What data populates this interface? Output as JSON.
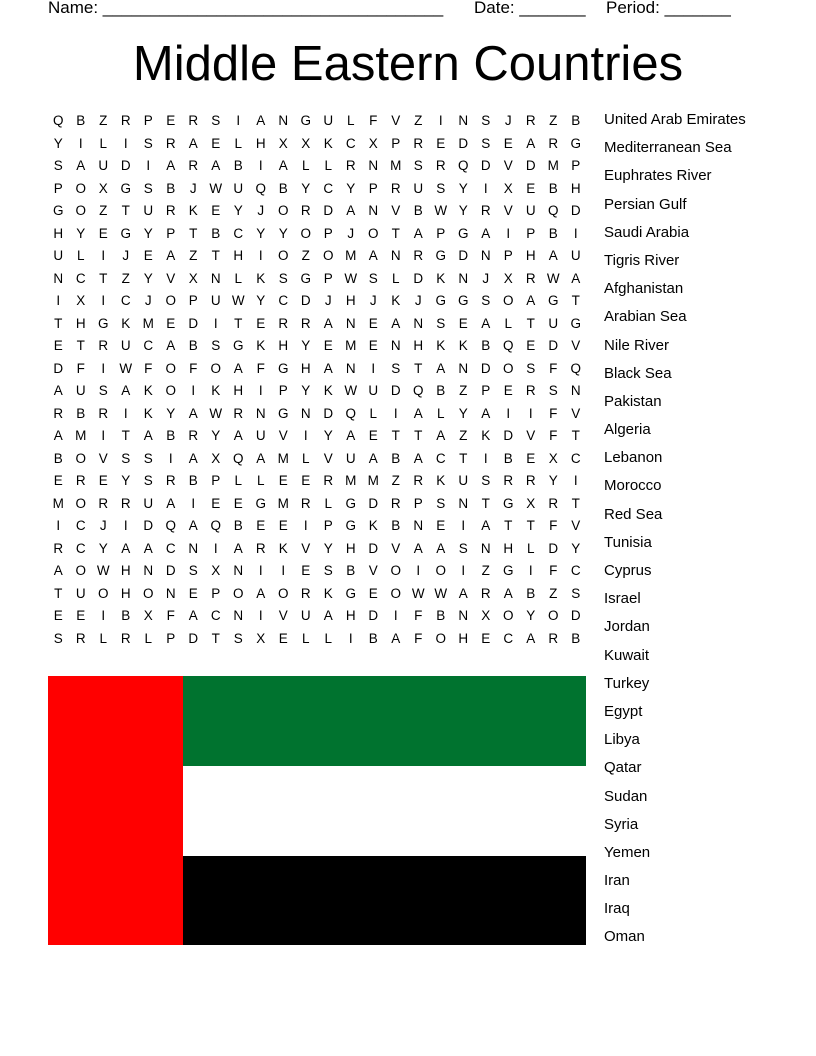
{
  "header": {
    "name_label": "Name: ____________________________________",
    "date_label": "Date: _______",
    "period_label": "Period: _______"
  },
  "title": "Middle Eastern Countries",
  "grid": [
    "QBZRPERSIANGULFVZINSJRZB",
    "YILISRAELHXXKCXPREDSEARG",
    "SAUDIARABIALLRNMSRQDVDMP",
    "POXGSBJWUQBYCYPRUSYIXEBH",
    "GOZTURKEYJORDANVBWYRVUQD",
    "HYEGYPTBCYYOPJOTAPGAIPBI",
    "ULIJEAZTHIOZOMANRGDNPHAU",
    "NCTZYVXNLKSGPWSLDKNJXRWA",
    "IXICJOPUWYCDJHJKJGGSOAGT",
    "THGKMEDITERRANEANSEALTUG",
    "ETRUCABSGKHYEMENHKKBQEDV",
    "DFIWFOFOAFGHANISTANDOSFQ",
    "AUSAKOIKHIPYKWUDQBZPERSN",
    "RBRIKYAWRNGNDQLIALYAIIFV",
    "AMITABRYAUVIYAETTAZKDVFT",
    "BOVSSIAXQAMLVUABACTIBEXC",
    "EREYSRBPLLEERMMZRKUSRRYI",
    "MORRUAIEEGMRLGDRPSNTGXRT",
    "ICJIDQAQBEEIPGKBNEIATTFV",
    "RCYAACNIARKVYHDVAASNHLDY",
    "AOWHNDSXNIIESBVOIOIZGIFC",
    "TUOHONEPOAORKGEOWWARABZS",
    "EEIBXFACNIVUAHDIFBNXOYOD",
    "SRLRLPDTSXELLIBAFOHECARB"
  ],
  "words": [
    "United Arab Emirates",
    "Mediterranean Sea",
    "Euphrates River",
    "Persian Gulf",
    "Saudi Arabia",
    "Tigris River",
    "Afghanistan",
    "Arabian Sea",
    "Nile River",
    "Black Sea",
    "Pakistan",
    "Algeria",
    "Lebanon",
    "Morocco",
    "Red Sea",
    "Tunisia",
    "Cyprus",
    "Israel",
    "Jordan",
    "Kuwait",
    "Turkey",
    "Egypt",
    "Libya",
    "Qatar",
    "Sudan",
    "Syria",
    "Yemen",
    "Iran",
    "Iraq",
    "Oman"
  ],
  "flag": {
    "red": "#ff0000",
    "green": "#00732f",
    "white": "#ffffff",
    "black": "#000000"
  }
}
